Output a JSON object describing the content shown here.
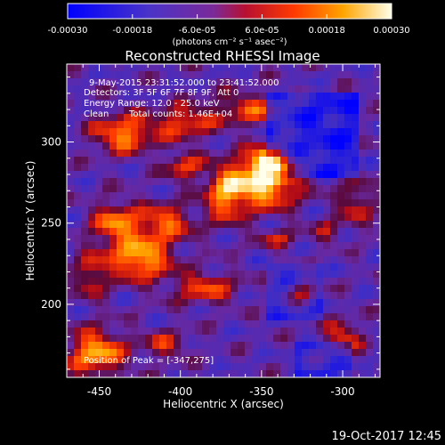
{
  "chart_data": {
    "type": "heatmap",
    "title": "Reconstructed RHESSI Image",
    "xlabel": "Heliocentric X (arcsec)",
    "ylabel": "Heliocentric Y (arcsec)",
    "xlim": [
      -470,
      -277
    ],
    "ylim": [
      155,
      348
    ],
    "x_ticks": [
      -450,
      -400,
      -350,
      -300
    ],
    "x_tick_labels": [
      "-450",
      "-400",
      "-350",
      "-300"
    ],
    "y_ticks": [
      200,
      250,
      300
    ],
    "y_tick_labels": [
      "200",
      "250",
      "300"
    ],
    "colorbar": {
      "range": [
        -0.0003,
        0.0003
      ],
      "lower_ticks": [
        -0.0003,
        -0.00018,
        0.00018,
        0.0003
      ],
      "lower_tick_labels": [
        "-0.00030",
        "-0.00018",
        "0.00018",
        "0.00030"
      ],
      "upper_ticks": [
        -6e-05,
        6e-05
      ],
      "upper_tick_labels": [
        "-6.0e-05",
        "6.0e-05"
      ],
      "unit_label": "(photons cm⁻² s⁻¹ asec⁻²)",
      "colors": [
        "#0000ff",
        "#5a2ca8",
        "#8a1f7a",
        "#c0101a",
        "#ff5a00",
        "#ffb000",
        "#ffffff"
      ]
    },
    "annotations": {
      "time_range": "9-May-2015 23:31:52.000 to 23:41:52.000",
      "detectors": "Detectors: 3F 5F 6F 7F 8F 9F, Att 0",
      "energy_range": "Energy Range: 12.0 - 25.0 keV",
      "method": "Clean",
      "total_counts": "Total counts: 1.46E+04",
      "peak": "Position of Peak = [-347,275]"
    },
    "peak_position": [
      -347,
      275
    ],
    "sources": [
      {
        "x": -347,
        "y": 275,
        "sx": 14,
        "sy": 11,
        "amp": 1.0
      },
      {
        "x": -372,
        "y": 268,
        "sx": 9,
        "sy": 12,
        "amp": 0.75
      },
      {
        "x": -435,
        "y": 305,
        "sx": 13,
        "sy": 8,
        "amp": 0.78
      },
      {
        "x": -398,
        "y": 312,
        "sx": 12,
        "sy": 7,
        "amp": 0.6
      },
      {
        "x": -358,
        "y": 320,
        "sx": 16,
        "sy": 7,
        "amp": 0.55
      },
      {
        "x": -440,
        "y": 250,
        "sx": 10,
        "sy": 9,
        "amp": 0.7
      },
      {
        "x": -410,
        "y": 250,
        "sx": 12,
        "sy": 8,
        "amp": 0.65
      },
      {
        "x": -425,
        "y": 228,
        "sx": 13,
        "sy": 9,
        "amp": 0.9
      },
      {
        "x": -385,
        "y": 210,
        "sx": 14,
        "sy": 7,
        "amp": 0.55
      },
      {
        "x": -455,
        "y": 218,
        "sx": 7,
        "sy": 10,
        "amp": 0.5
      },
      {
        "x": -452,
        "y": 170,
        "sx": 12,
        "sy": 10,
        "amp": 0.85
      },
      {
        "x": -410,
        "y": 175,
        "sx": 10,
        "sy": 6,
        "amp": 0.45
      },
      {
        "x": -325,
        "y": 208,
        "sx": 7,
        "sy": 5,
        "amp": 0.55
      },
      {
        "x": -300,
        "y": 180,
        "sx": 8,
        "sy": 7,
        "amp": 0.55
      },
      {
        "x": -292,
        "y": 262,
        "sx": 8,
        "sy": 10,
        "amp": 0.45
      },
      {
        "x": -310,
        "y": 245,
        "sx": 6,
        "sy": 5,
        "amp": 0.35
      },
      {
        "x": -340,
        "y": 240,
        "sx": 9,
        "sy": 4,
        "amp": 0.4
      },
      {
        "x": -345,
        "y": 288,
        "sx": 9,
        "sy": 6,
        "amp": 0.9
      },
      {
        "x": -398,
        "y": 285,
        "sx": 8,
        "sy": 6,
        "amp": 0.55
      }
    ]
  },
  "footer": {
    "timestamp": "19-Oct-2017 12:45"
  }
}
